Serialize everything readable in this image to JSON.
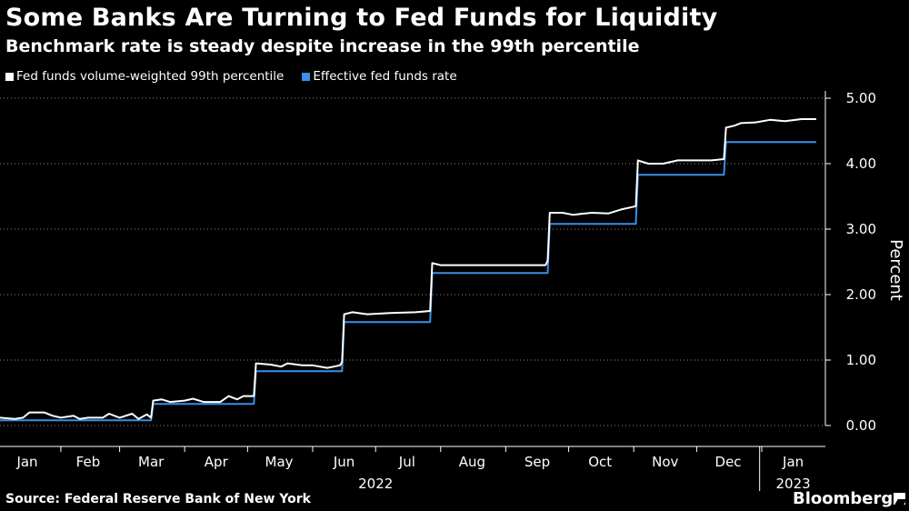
{
  "header": {
    "title": "Some Banks Are Turning to Fed Funds for Liquidity",
    "subtitle": "Benchmark rate is steady despite increase in the 99th percentile"
  },
  "footer": {
    "source": "Source: Federal Reserve Bank of New York",
    "logo": "Bloomberg"
  },
  "colors": {
    "background": "#000000",
    "series_99th": "#ffffff",
    "series_effr": "#3a8fe8",
    "grid": "#ffffff"
  },
  "chart_data": {
    "type": "line",
    "title": "Some Banks Are Turning to Fed Funds for Liquidity",
    "subtitle": "Benchmark rate is steady despite increase in the 99th percentile",
    "ylabel": "Percent",
    "ylim": [
      0,
      5
    ],
    "yticks": [
      "0.00",
      "1.00",
      "2.00",
      "3.00",
      "4.00",
      "5.00"
    ],
    "x_range": [
      "2022-01-03",
      "2023-01-27"
    ],
    "x_months": [
      {
        "label": "Jan",
        "date": "2022-01-16"
      },
      {
        "label": "Feb",
        "date": "2022-02-14"
      },
      {
        "label": "Mar",
        "date": "2022-03-16"
      },
      {
        "label": "Apr",
        "date": "2022-04-16"
      },
      {
        "label": "May",
        "date": "2022-05-16"
      },
      {
        "label": "Jun",
        "date": "2022-06-16"
      },
      {
        "label": "Jul",
        "date": "2022-07-16"
      },
      {
        "label": "Aug",
        "date": "2022-08-16"
      },
      {
        "label": "Sep",
        "date": "2022-09-16"
      },
      {
        "label": "Oct",
        "date": "2022-10-16"
      },
      {
        "label": "Nov",
        "date": "2022-11-16"
      },
      {
        "label": "Dec",
        "date": "2022-12-16"
      },
      {
        "label": "Jan",
        "date": "2023-01-16"
      }
    ],
    "year_labels": [
      {
        "label": "2022",
        "date": "2022-07-01"
      },
      {
        "label": "2023",
        "date": "2023-01-16"
      }
    ],
    "year_divider": "2022-12-31",
    "grid": true,
    "legend_position": "top-left",
    "series": [
      {
        "name": "Fed funds volume-weighted 99th percentile",
        "color": "#ffffff",
        "points": [
          [
            "2022-01-03",
            0.12
          ],
          [
            "2022-01-10",
            0.1
          ],
          [
            "2022-01-14",
            0.12
          ],
          [
            "2022-01-17",
            0.2
          ],
          [
            "2022-01-24",
            0.2
          ],
          [
            "2022-01-28",
            0.15
          ],
          [
            "2022-02-01",
            0.12
          ],
          [
            "2022-02-07",
            0.15
          ],
          [
            "2022-02-10",
            0.1
          ],
          [
            "2022-02-14",
            0.12
          ],
          [
            "2022-02-21",
            0.12
          ],
          [
            "2022-02-24",
            0.18
          ],
          [
            "2022-03-01",
            0.12
          ],
          [
            "2022-03-07",
            0.18
          ],
          [
            "2022-03-10",
            0.1
          ],
          [
            "2022-03-14",
            0.17
          ],
          [
            "2022-03-16",
            0.12
          ],
          [
            "2022-03-17",
            0.38
          ],
          [
            "2022-03-21",
            0.4
          ],
          [
            "2022-03-25",
            0.36
          ],
          [
            "2022-04-01",
            0.38
          ],
          [
            "2022-04-05",
            0.41
          ],
          [
            "2022-04-10",
            0.36
          ],
          [
            "2022-04-18",
            0.36
          ],
          [
            "2022-04-22",
            0.45
          ],
          [
            "2022-04-26",
            0.4
          ],
          [
            "2022-04-29",
            0.45
          ],
          [
            "2022-05-04",
            0.45
          ],
          [
            "2022-05-05",
            0.95
          ],
          [
            "2022-05-12",
            0.93
          ],
          [
            "2022-05-17",
            0.9
          ],
          [
            "2022-05-20",
            0.95
          ],
          [
            "2022-05-27",
            0.92
          ],
          [
            "2022-06-01",
            0.92
          ],
          [
            "2022-06-08",
            0.88
          ],
          [
            "2022-06-14",
            0.92
          ],
          [
            "2022-06-15",
            0.97
          ],
          [
            "2022-06-16",
            1.7
          ],
          [
            "2022-06-20",
            1.73
          ],
          [
            "2022-06-27",
            1.7
          ],
          [
            "2022-07-08",
            1.72
          ],
          [
            "2022-07-20",
            1.73
          ],
          [
            "2022-07-27",
            1.75
          ],
          [
            "2022-07-28",
            2.48
          ],
          [
            "2022-08-01",
            2.45
          ],
          [
            "2022-08-15",
            2.45
          ],
          [
            "2022-09-01",
            2.45
          ],
          [
            "2022-09-20",
            2.45
          ],
          [
            "2022-09-21",
            2.52
          ],
          [
            "2022-09-22",
            3.25
          ],
          [
            "2022-09-28",
            3.25
          ],
          [
            "2022-10-03",
            3.22
          ],
          [
            "2022-10-12",
            3.25
          ],
          [
            "2022-10-20",
            3.24
          ],
          [
            "2022-10-26",
            3.3
          ],
          [
            "2022-11-02",
            3.35
          ],
          [
            "2022-11-03",
            4.05
          ],
          [
            "2022-11-08",
            4.0
          ],
          [
            "2022-11-15",
            4.0
          ],
          [
            "2022-11-22",
            4.05
          ],
          [
            "2022-12-01",
            4.05
          ],
          [
            "2022-12-08",
            4.05
          ],
          [
            "2022-12-14",
            4.07
          ],
          [
            "2022-12-15",
            4.55
          ],
          [
            "2022-12-19",
            4.58
          ],
          [
            "2022-12-22",
            4.62
          ],
          [
            "2022-12-29",
            4.63
          ],
          [
            "2023-01-05",
            4.67
          ],
          [
            "2023-01-12",
            4.65
          ],
          [
            "2023-01-20",
            4.68
          ],
          [
            "2023-01-27",
            4.68
          ]
        ]
      },
      {
        "name": "Effective fed funds rate",
        "color": "#3a8fe8",
        "points": [
          [
            "2022-01-03",
            0.08
          ],
          [
            "2022-03-16",
            0.08
          ],
          [
            "2022-03-17",
            0.33
          ],
          [
            "2022-05-04",
            0.33
          ],
          [
            "2022-05-05",
            0.83
          ],
          [
            "2022-06-15",
            0.83
          ],
          [
            "2022-06-16",
            1.58
          ],
          [
            "2022-07-27",
            1.58
          ],
          [
            "2022-07-28",
            2.33
          ],
          [
            "2022-09-21",
            2.33
          ],
          [
            "2022-09-22",
            3.08
          ],
          [
            "2022-11-02",
            3.08
          ],
          [
            "2022-11-03",
            3.83
          ],
          [
            "2022-12-14",
            3.83
          ],
          [
            "2022-12-15",
            4.33
          ],
          [
            "2023-01-27",
            4.33
          ]
        ]
      }
    ]
  }
}
